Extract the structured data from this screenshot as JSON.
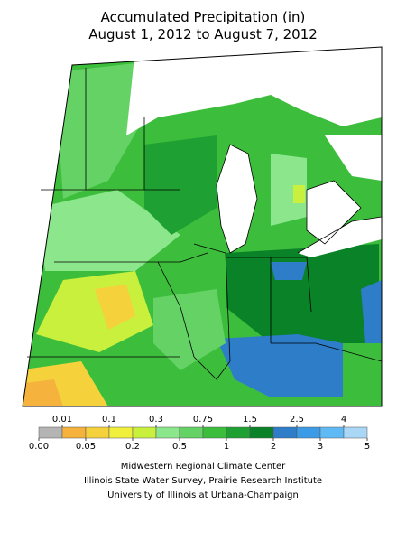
{
  "title": "Accumulated Precipitation (in)",
  "subtitle": "August 1, 2012 to August 7, 2012",
  "legend": {
    "ticks": [
      {
        "value": 0,
        "label": "0.00"
      },
      0.01,
      0.05,
      0.1,
      0.2,
      0.3,
      0.5,
      0.75,
      1,
      1.5,
      2,
      2.5,
      3,
      4,
      5
    ],
    "colors": [
      "#b4b4b4",
      "#f5b23c",
      "#f5d23c",
      "#f0f03c",
      "#c8f03c",
      "#8ce68c",
      "#64d264",
      "#3cbe3c",
      "#1ea032",
      "#0a8228",
      "#2d7dc8",
      "#3c9be6",
      "#5fb9f5",
      "#aad7f5",
      "#cd8cf0"
    ]
  },
  "credits": [
    "Midwestern Regional Climate Center",
    "Illinois State Water Survey, Prairie Research Institute",
    "University of Illinois at Urbana-Champaign"
  ]
}
